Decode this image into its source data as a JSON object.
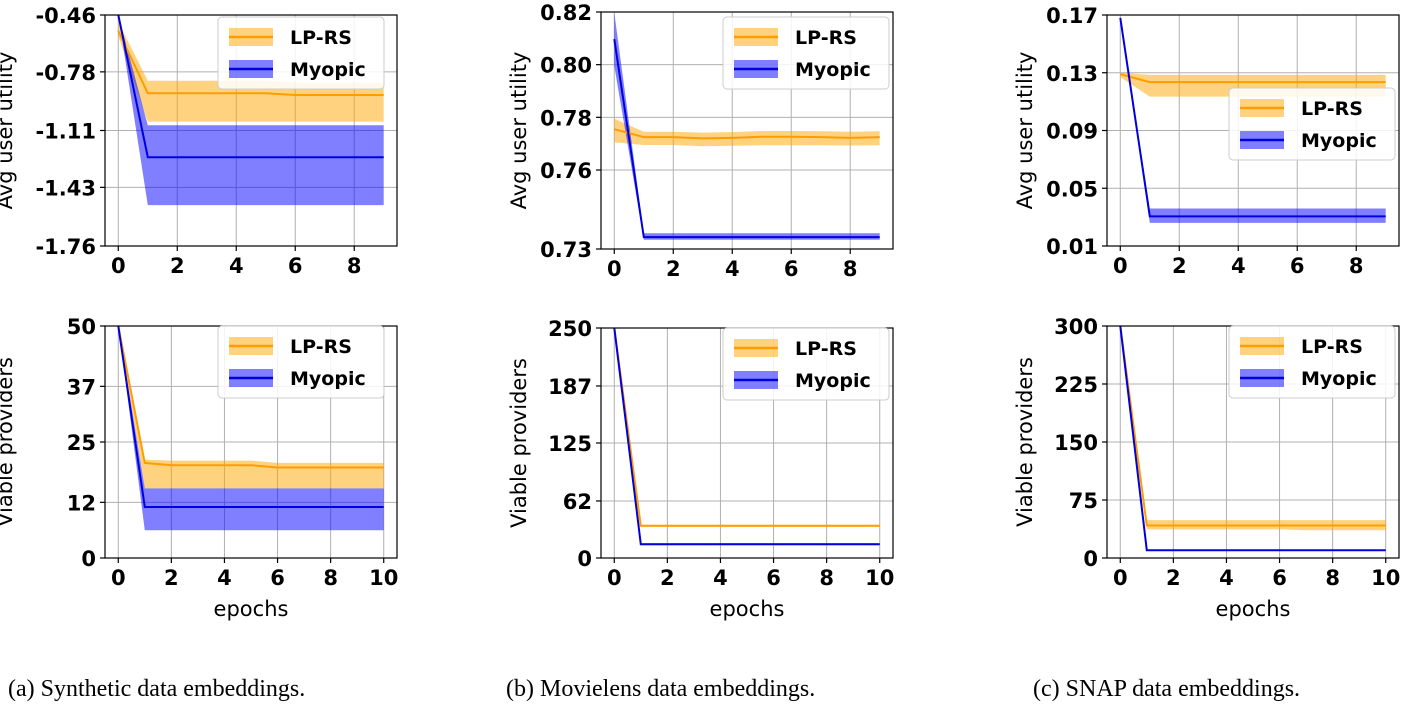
{
  "chart_data": [
    {
      "id": "a-top",
      "type": "line",
      "ylabel": "Avg user utility",
      "xlabel": "",
      "xlim": [
        -0.45,
        9.45
      ],
      "ylim": [
        -1.76,
        -0.46
      ],
      "xticks": [
        0,
        2,
        4,
        6,
        8
      ],
      "xtick_labels": [
        "0",
        "2",
        "4",
        "6",
        "8"
      ],
      "yticks": [
        -0.46,
        -0.78,
        -1.11,
        -1.43,
        -1.76
      ],
      "ytick_labels": [
        "-0.46",
        "-0.78",
        "-1.11",
        "-1.43",
        "-1.76"
      ],
      "legend_loc": "upper-right",
      "series": [
        {
          "name": "LP-RS",
          "color": "#ff9d00",
          "fill": "#ffa500",
          "x": [
            0,
            1,
            2,
            3,
            4,
            5,
            6,
            7,
            8,
            9
          ],
          "mean": [
            -0.55,
            -0.9,
            -0.9,
            -0.9,
            -0.9,
            -0.9,
            -0.91,
            -0.91,
            -0.91,
            -0.91
          ],
          "lower": [
            -0.58,
            -1.06,
            -1.06,
            -1.06,
            -1.06,
            -1.06,
            -1.06,
            -1.06,
            -1.06,
            -1.06
          ],
          "upper": [
            -0.5,
            -0.83,
            -0.83,
            -0.83,
            -0.83,
            -0.83,
            -0.84,
            -0.84,
            -0.84,
            -0.84
          ]
        },
        {
          "name": "Myopic",
          "color": "#0000dd",
          "fill": "#0000ff",
          "x": [
            0,
            1,
            2,
            3,
            4,
            5,
            6,
            7,
            8,
            9
          ],
          "mean": [
            -0.46,
            -1.26,
            -1.26,
            -1.26,
            -1.26,
            -1.26,
            -1.26,
            -1.26,
            -1.26,
            -1.26
          ],
          "lower": [
            -0.46,
            -1.53,
            -1.53,
            -1.53,
            -1.53,
            -1.53,
            -1.53,
            -1.53,
            -1.53,
            -1.53
          ],
          "upper": [
            -0.46,
            -1.08,
            -1.08,
            -1.08,
            -1.08,
            -1.08,
            -1.08,
            -1.08,
            -1.08,
            -1.08
          ]
        }
      ]
    },
    {
      "id": "b-top",
      "type": "line",
      "ylabel": "Avg user utility",
      "xlabel": "",
      "xlim": [
        -0.45,
        9.45
      ],
      "ylim": [
        0.73,
        0.82
      ],
      "xticks": [
        0,
        2,
        4,
        6,
        8
      ],
      "xtick_labels": [
        "0",
        "2",
        "4",
        "6",
        "8"
      ],
      "yticks": [
        0.82,
        0.8,
        0.78,
        0.76,
        0.73
      ],
      "ytick_labels": [
        "0.82",
        "0.80",
        "0.78",
        "0.76",
        "0.73"
      ],
      "legend_loc": "upper-right",
      "series": [
        {
          "name": "LP-RS",
          "color": "#ff9d00",
          "fill": "#ffa500",
          "x": [
            0,
            1,
            2,
            3,
            4,
            5,
            6,
            7,
            8,
            9
          ],
          "mean": [
            0.7755,
            0.7725,
            0.7725,
            0.772,
            0.7722,
            0.7726,
            0.7726,
            0.7725,
            0.7722,
            0.7725
          ],
          "lower": [
            0.7705,
            0.7695,
            0.7695,
            0.769,
            0.7692,
            0.7694,
            0.7694,
            0.7694,
            0.7693,
            0.7694
          ],
          "upper": [
            0.7795,
            0.7745,
            0.7745,
            0.7742,
            0.7744,
            0.7748,
            0.7748,
            0.7747,
            0.7745,
            0.7747
          ]
        },
        {
          "name": "Myopic",
          "color": "#0000dd",
          "fill": "#0000ff",
          "x": [
            0,
            1,
            2,
            3,
            4,
            5,
            6,
            7,
            8,
            9
          ],
          "mean": [
            0.8097,
            0.7345,
            0.7345,
            0.7345,
            0.7345,
            0.7345,
            0.7345,
            0.7345,
            0.7345,
            0.7345
          ],
          "lower": [
            0.7995,
            0.7335,
            0.7335,
            0.7335,
            0.7335,
            0.7335,
            0.7335,
            0.7335,
            0.7335,
            0.7335
          ],
          "upper": [
            0.8197,
            0.736,
            0.736,
            0.736,
            0.736,
            0.736,
            0.736,
            0.736,
            0.736,
            0.736
          ]
        }
      ]
    },
    {
      "id": "c-top",
      "type": "line",
      "ylabel": "Avg user utility",
      "xlabel": "",
      "xlim": [
        -0.45,
        9.45
      ],
      "ylim": [
        0.01,
        0.17
      ],
      "xticks": [
        0,
        2,
        4,
        6,
        8
      ],
      "xtick_labels": [
        "0",
        "2",
        "4",
        "6",
        "8"
      ],
      "yticks": [
        0.17,
        0.13,
        0.09,
        0.05,
        0.01
      ],
      "ytick_labels": [
        "0.17",
        "0.13",
        "0.09",
        "0.05",
        "0.01"
      ],
      "legend_loc": "center-right",
      "series": [
        {
          "name": "LP-RS",
          "color": "#ff9d00",
          "fill": "#ffa500",
          "x": [
            0,
            1,
            2,
            3,
            4,
            5,
            6,
            7,
            8,
            9
          ],
          "mean": [
            0.129,
            0.1235,
            0.1235,
            0.1235,
            0.1235,
            0.1235,
            0.1235,
            0.1235,
            0.1235,
            0.1235
          ],
          "lower": [
            0.127,
            0.1135,
            0.1135,
            0.1135,
            0.1135,
            0.1135,
            0.1135,
            0.1135,
            0.1135,
            0.1135
          ],
          "upper": [
            0.13,
            0.1285,
            0.1285,
            0.1285,
            0.1285,
            0.1285,
            0.1285,
            0.1285,
            0.1285,
            0.1285
          ]
        },
        {
          "name": "Myopic",
          "color": "#0000dd",
          "fill": "#0000ff",
          "x": [
            0,
            1,
            2,
            3,
            4,
            5,
            6,
            7,
            8,
            9
          ],
          "mean": [
            0.168,
            0.0305,
            0.0305,
            0.0305,
            0.0305,
            0.0305,
            0.0305,
            0.0305,
            0.0305,
            0.0305
          ],
          "lower": [
            0.168,
            0.026,
            0.026,
            0.026,
            0.026,
            0.026,
            0.026,
            0.026,
            0.026,
            0.026
          ],
          "upper": [
            0.168,
            0.036,
            0.036,
            0.036,
            0.036,
            0.036,
            0.036,
            0.036,
            0.036,
            0.036
          ]
        }
      ]
    },
    {
      "id": "a-bottom",
      "type": "line",
      "ylabel": "Viable providers",
      "xlabel": "epochs",
      "xlim": [
        -0.5,
        10.5
      ],
      "ylim": [
        0,
        50
      ],
      "xticks": [
        0,
        2,
        4,
        6,
        8,
        10
      ],
      "xtick_labels": [
        "0",
        "2",
        "4",
        "6",
        "8",
        "10"
      ],
      "yticks": [
        50,
        37,
        25,
        12,
        0
      ],
      "ytick_labels": [
        "50",
        "37",
        "25",
        "12",
        "0"
      ],
      "legend_loc": "upper-right",
      "series": [
        {
          "name": "LP-RS",
          "color": "#ff9d00",
          "fill": "#ffa500",
          "x": [
            0,
            1,
            2,
            3,
            4,
            5,
            6,
            7,
            8,
            9,
            10
          ],
          "mean": [
            50,
            20.5,
            20,
            20,
            20,
            20,
            19.5,
            19.5,
            19.5,
            19.5,
            19.5
          ],
          "lower": [
            50,
            15,
            15,
            15,
            15,
            15,
            15,
            15,
            15,
            15,
            15
          ],
          "upper": [
            50,
            21.2,
            21,
            21,
            21,
            21,
            20.5,
            20.5,
            20.5,
            20.5,
            20.5
          ]
        },
        {
          "name": "Myopic",
          "color": "#0000dd",
          "fill": "#0000ff",
          "x": [
            0,
            1,
            2,
            3,
            4,
            5,
            6,
            7,
            8,
            9,
            10
          ],
          "mean": [
            50,
            11,
            11,
            11,
            11,
            11,
            11,
            11,
            11,
            11,
            11
          ],
          "lower": [
            50,
            6,
            6,
            6,
            6,
            6,
            6,
            6,
            6,
            6,
            6
          ],
          "upper": [
            50,
            15,
            15,
            15,
            15,
            15,
            15,
            15,
            15,
            15,
            15
          ]
        }
      ]
    },
    {
      "id": "b-bottom",
      "type": "line",
      "ylabel": "Viable providers",
      "xlabel": "epochs",
      "xlim": [
        -0.5,
        10.5
      ],
      "ylim": [
        0,
        250
      ],
      "xticks": [
        0,
        2,
        4,
        6,
        8,
        10
      ],
      "xtick_labels": [
        "0",
        "2",
        "4",
        "6",
        "8",
        "10"
      ],
      "yticks": [
        250,
        187,
        125,
        62,
        0
      ],
      "ytick_labels": [
        "250",
        "187",
        "125",
        "62",
        "0"
      ],
      "legend_loc": "upper-right",
      "series": [
        {
          "name": "LP-RS",
          "color": "#ff9d00",
          "fill": "#ffa500",
          "x": [
            0,
            1,
            2,
            3,
            4,
            5,
            6,
            7,
            8,
            9,
            10
          ],
          "mean": [
            250,
            35,
            35,
            35,
            35,
            35,
            35,
            35,
            35,
            35,
            35
          ],
          "lower": [
            250,
            34,
            34,
            34,
            34,
            34,
            34,
            34,
            34,
            34,
            34
          ],
          "upper": [
            250,
            36,
            36,
            36,
            36,
            36,
            36,
            36,
            36,
            36,
            36
          ]
        },
        {
          "name": "Myopic",
          "color": "#0000dd",
          "fill": "#0000ff",
          "x": [
            0,
            1,
            2,
            3,
            4,
            5,
            6,
            7,
            8,
            9,
            10
          ],
          "mean": [
            250,
            15,
            15,
            15,
            15,
            15,
            15,
            15,
            15,
            15,
            15
          ],
          "lower": [
            250,
            14,
            14,
            14,
            14,
            14,
            14,
            14,
            14,
            14,
            14
          ],
          "upper": [
            250,
            16,
            16,
            16,
            16,
            16,
            16,
            16,
            16,
            16,
            16
          ]
        }
      ]
    },
    {
      "id": "c-bottom",
      "type": "line",
      "ylabel": "Viable providers",
      "xlabel": "epochs",
      "xlim": [
        -0.5,
        10.5
      ],
      "ylim": [
        0,
        300
      ],
      "xticks": [
        0,
        2,
        4,
        6,
        8,
        10
      ],
      "xtick_labels": [
        "0",
        "2",
        "4",
        "6",
        "8",
        "10"
      ],
      "yticks": [
        300,
        225,
        150,
        75,
        0
      ],
      "ytick_labels": [
        "300",
        "225",
        "150",
        "75",
        "0"
      ],
      "legend_loc": "upper-right",
      "series": [
        {
          "name": "LP-RS",
          "color": "#ff9d00",
          "fill": "#ffa500",
          "x": [
            0,
            1,
            2,
            3,
            4,
            5,
            6,
            7,
            8,
            9,
            10
          ],
          "mean": [
            300,
            42,
            42,
            42,
            42,
            42,
            42,
            42,
            42,
            42,
            42
          ],
          "lower": [
            300,
            37,
            37,
            37,
            37,
            37,
            37,
            36,
            36,
            36,
            36
          ],
          "upper": [
            300,
            49,
            49,
            49,
            49,
            49,
            49,
            49,
            49,
            49,
            49
          ]
        },
        {
          "name": "Myopic",
          "color": "#0000dd",
          "fill": "#0000ff",
          "x": [
            0,
            1,
            2,
            3,
            4,
            5,
            6,
            7,
            8,
            9,
            10
          ],
          "mean": [
            300,
            10,
            10,
            10,
            10,
            10,
            10,
            10,
            10,
            10,
            10
          ],
          "lower": [
            300,
            9,
            9,
            9,
            9,
            9,
            9,
            9,
            9,
            9,
            9
          ],
          "upper": [
            300,
            11,
            11,
            11,
            11,
            11,
            11,
            11,
            11,
            11,
            11
          ]
        }
      ]
    }
  ],
  "captions": {
    "a": "(a) Synthetic data embeddings.",
    "b": "(b) Movielens data embeddings.",
    "c": "(c) SNAP data embeddings."
  }
}
